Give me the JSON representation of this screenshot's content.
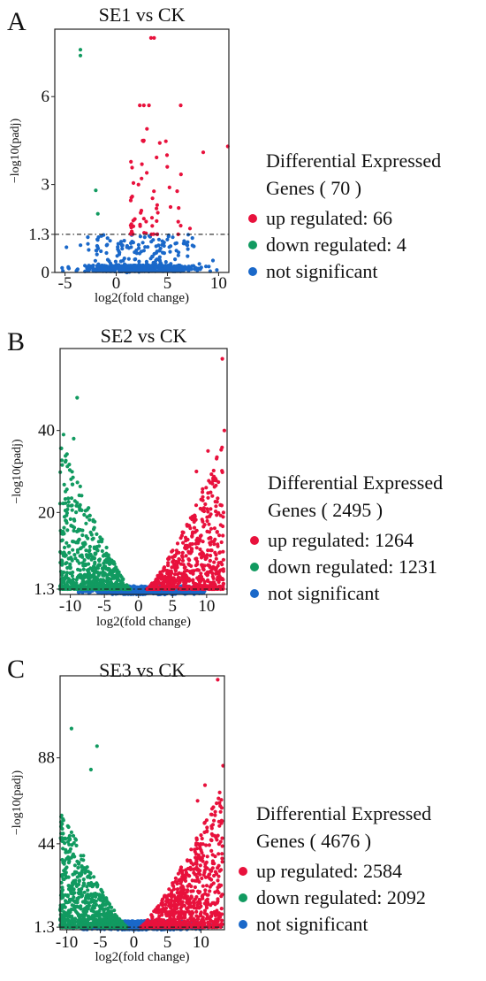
{
  "colors": {
    "up": "#e8113c",
    "down": "#119a60",
    "ns": "#1a68c9",
    "threshold_line": "#222222"
  },
  "panels": [
    {
      "letter": "A"
    },
    {
      "letter": "B"
    },
    {
      "letter": "C"
    }
  ],
  "chart_data": [
    {
      "type": "scatter",
      "title": "SE1 vs CK",
      "xlabel": "log2(fold change)",
      "ylabel": "−log10(padj)",
      "xlim": [
        -6,
        11
      ],
      "ylim": [
        0,
        8.3
      ],
      "xticks": [
        -5,
        0,
        5,
        10
      ],
      "yticks": [
        0,
        1.3,
        3,
        6
      ],
      "ytick_labels": [
        "0",
        "1.3",
        "3",
        "6"
      ],
      "threshold": 1.3,
      "grid": false,
      "legend": {
        "title": "Differential Expressed",
        "total_label": "Genes ( 70 )",
        "position": "right",
        "entries": [
          {
            "label": "up regulated: 66",
            "color_key": "up"
          },
          {
            "label": "down regulated: 4",
            "color_key": "down"
          },
          {
            "label": "not significant",
            "color_key": "ns"
          }
        ]
      },
      "counts": {
        "up": 66,
        "down": 4
      },
      "seed": 11,
      "ns_cloud": {
        "n": 650,
        "xmin": -6,
        "xmax": 10.5,
        "ymax": 1.3,
        "bulk": 0.25
      },
      "up_cloud": {
        "n": 52,
        "xmin": 1.4,
        "xmax": 6.5,
        "ymin": 1.3,
        "ymax": 4.5
      },
      "up_highlights": [
        [
          3.4,
          8.0
        ],
        [
          3.7,
          8.0
        ],
        [
          2.3,
          5.7
        ],
        [
          2.7,
          5.7
        ],
        [
          3.2,
          5.7
        ],
        [
          6.3,
          5.7
        ],
        [
          2.7,
          4.5
        ],
        [
          8.5,
          4.1
        ],
        [
          3.0,
          4.9
        ],
        [
          10.9,
          4.3
        ],
        [
          5.2,
          2.9
        ],
        [
          4.0,
          2.3
        ],
        [
          6.1,
          2.2
        ],
        [
          7.2,
          1.5
        ]
      ],
      "down_points": [
        [
          -3.5,
          7.6
        ],
        [
          -3.5,
          7.4
        ],
        [
          -2.0,
          2.8
        ],
        [
          -1.8,
          2.0
        ]
      ]
    },
    {
      "type": "scatter",
      "title": "SE2 vs CK",
      "xlabel": "log2(fold change)",
      "ylabel": "−log10(padj)",
      "xlim": [
        -11.5,
        13
      ],
      "ylim": [
        0,
        60
      ],
      "xticks": [
        -10,
        -5,
        0,
        5,
        10
      ],
      "yticks": [
        1.3,
        20,
        40
      ],
      "ytick_labels": [
        "1.3",
        "20",
        "40"
      ],
      "threshold": 1.3,
      "grid": false,
      "legend": {
        "title": "Differential Expressed",
        "total_label": "Genes ( 2495 )",
        "position": "right",
        "entries": [
          {
            "label": "up regulated: 1264",
            "color_key": "up"
          },
          {
            "label": "down regulated: 1231",
            "color_key": "down"
          },
          {
            "label": "not significant",
            "color_key": "ns"
          }
        ]
      },
      "counts": {
        "up": 1264,
        "down": 1231
      },
      "seed": 23,
      "ns_cloud": {
        "n": 900,
        "xmin": -11,
        "xmax": 12.5,
        "ymax": 1.3,
        "bulk": 0.3
      },
      "down_cloud": {
        "n": 650,
        "xmin": -11.5,
        "xmax": -1.2,
        "ymax": 38,
        "vshape": true
      },
      "up_cloud": {
        "n": 650,
        "xmin": 1.2,
        "xmax": 12.5,
        "ymax": 36,
        "vshape": true
      },
      "up_highlights": [
        [
          12.3,
          57.5
        ],
        [
          12.6,
          40.0
        ],
        [
          10.2,
          35.0
        ],
        [
          8.5,
          30.0
        ]
      ],
      "down_points": [
        [
          -9.0,
          48.0
        ],
        [
          -11.0,
          39.0
        ],
        [
          -9.5,
          38.0
        ]
      ]
    },
    {
      "type": "scatter",
      "title": "SE3 vs CK",
      "xlabel": "log2(fold change)",
      "ylabel": "−log10(padj)",
      "xlim": [
        -11,
        13.5
      ],
      "ylim": [
        0,
        130
      ],
      "xticks": [
        -10,
        -5,
        0,
        5,
        10
      ],
      "yticks": [
        1.3,
        44,
        88
      ],
      "ytick_labels": [
        "1.3",
        "44",
        "88"
      ],
      "threshold": 1.3,
      "grid": false,
      "legend": {
        "title": "Differential Expressed",
        "total_label": "Genes ( 4676 )",
        "position": "right",
        "entries": [
          {
            "label": "up regulated: 2584",
            "color_key": "up"
          },
          {
            "label": "down regulated: 2092",
            "color_key": "down"
          },
          {
            "label": "not significant",
            "color_key": "ns"
          }
        ]
      },
      "counts": {
        "up": 2584,
        "down": 2092
      },
      "seed": 37,
      "ns_cloud": {
        "n": 900,
        "xmin": -10.5,
        "xmax": 12.5,
        "ymax": 1.3,
        "bulk": 0.3
      },
      "down_cloud": {
        "n": 750,
        "xmin": -11,
        "xmax": -1.0,
        "ymax": 62,
        "vshape": true
      },
      "up_cloud": {
        "n": 800,
        "xmin": 1.0,
        "xmax": 13.2,
        "ymax": 72,
        "vshape": true
      },
      "up_highlights": [
        [
          12.5,
          128.0
        ],
        [
          13.3,
          84.0
        ],
        [
          10.6,
          74.0
        ],
        [
          9.5,
          66.0
        ]
      ],
      "down_points": [
        [
          -9.3,
          103.0
        ],
        [
          -5.5,
          94.0
        ],
        [
          -10.5,
          56.0
        ],
        [
          -6.4,
          82.0
        ]
      ]
    }
  ]
}
